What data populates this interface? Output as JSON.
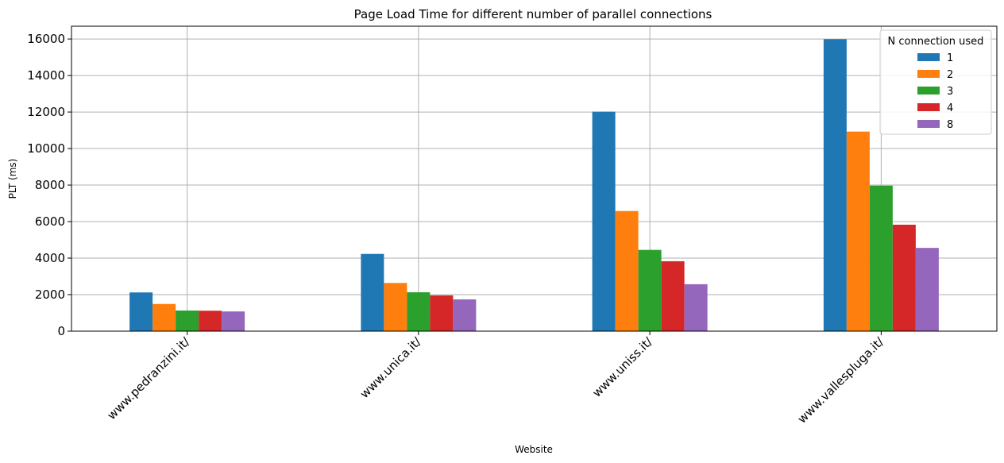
{
  "chart_data": {
    "type": "bar",
    "title": "Page Load Time for different number of parallel connections",
    "xlabel": "Website",
    "ylabel": "PLT (ms)",
    "ylim": [
      0,
      16700
    ],
    "yticks": [
      0,
      2000,
      4000,
      6000,
      8000,
      10000,
      12000,
      14000,
      16000
    ],
    "grid": true,
    "legend_title": "N connection used",
    "legend_position": "top-right",
    "categories": [
      "www.pedranzini.it/",
      "www.unica.it/",
      "www.uniss.it/",
      "www.vallespluga.it/"
    ],
    "series": [
      {
        "name": "1",
        "color": "#1f77b4",
        "values": [
          2120,
          4230,
          12020,
          15990
        ]
      },
      {
        "name": "2",
        "color": "#ff7f0e",
        "values": [
          1490,
          2640,
          6580,
          10930
        ]
      },
      {
        "name": "3",
        "color": "#2ca02c",
        "values": [
          1130,
          2130,
          4450,
          7970
        ]
      },
      {
        "name": "4",
        "color": "#d62728",
        "values": [
          1120,
          1960,
          3830,
          5830
        ]
      },
      {
        "name": "8",
        "color": "#9467bd",
        "values": [
          1080,
          1740,
          2570,
          4560
        ]
      }
    ]
  }
}
